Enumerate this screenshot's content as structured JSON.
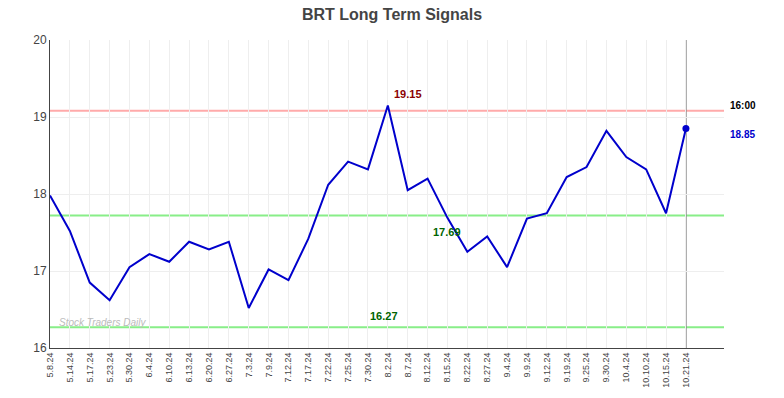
{
  "chart_data": {
    "type": "line",
    "title": "BRT Long Term Signals",
    "categories": [
      "5.8.24",
      "5.14.24",
      "5.17.24",
      "5.23.24",
      "5.30.24",
      "6.4.24",
      "6.10.24",
      "6.13.24",
      "6.20.24",
      "6.27.24",
      "7.3.24",
      "7.9.24",
      "7.12.24",
      "7.17.24",
      "7.22.24",
      "7.25.24",
      "7.30.24",
      "8.2.24",
      "8.7.24",
      "8.12.24",
      "8.15.24",
      "8.22.24",
      "8.27.24",
      "9.4.24",
      "9.9.24",
      "9.12.24",
      "9.19.24",
      "9.25.24",
      "9.30.24",
      "10.4.24",
      "10.10.24",
      "10.15.24",
      "10.21.24"
    ],
    "values": [
      17.98,
      17.52,
      16.85,
      16.62,
      17.05,
      17.22,
      17.12,
      17.38,
      17.28,
      17.38,
      16.52,
      17.02,
      16.88,
      17.42,
      18.12,
      18.42,
      18.32,
      19.15,
      18.05,
      18.2,
      17.69,
      17.25,
      17.45,
      17.05,
      17.68,
      17.75,
      18.22,
      18.35,
      18.82,
      18.48,
      18.32,
      17.75,
      18.85
    ],
    "color": "#0000cc",
    "hlines": [
      {
        "value": 19.08,
        "color": "#ffaaaa"
      },
      {
        "value": 17.72,
        "color": "#88ee88"
      },
      {
        "value": 16.27,
        "color": "#88ee88"
      }
    ],
    "vline": {
      "category": "10.21.24",
      "color": "#888888"
    },
    "annotations": [
      {
        "text": "19.15",
        "category": "8.2.24",
        "y": 19.15,
        "color": "darkred"
      },
      {
        "text": "17.69",
        "category": "8.15.24",
        "y": 17.69,
        "color": "darkgreen"
      },
      {
        "text": "16.27",
        "category": "7.30.24",
        "y": 16.27,
        "color": "darkgreen"
      }
    ],
    "side_labels": [
      {
        "text": "16:00",
        "y": 19.08,
        "color": "black"
      },
      {
        "text": "18.85",
        "y": 18.85,
        "color": "#0000cc"
      }
    ],
    "watermark": "Stock Traders Daily",
    "ylim": [
      16,
      20
    ],
    "yticks": [
      16,
      17,
      18,
      19,
      20
    ],
    "grid": true
  }
}
